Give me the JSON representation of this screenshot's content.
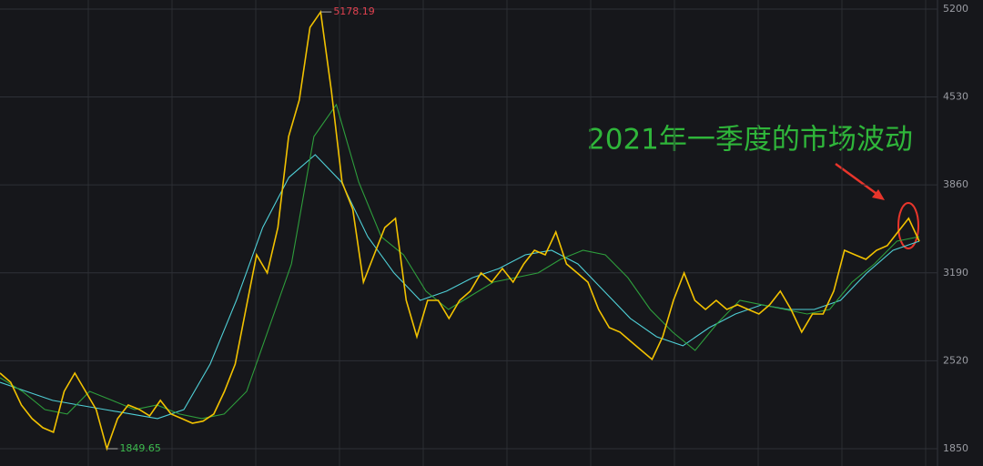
{
  "chart_data": {
    "type": "line",
    "annotation": "2021年一季度的市场波动",
    "high": 5178.19,
    "low": 1849.65,
    "ylim": [
      1718,
      5269
    ],
    "yticks": [
      1850,
      2520,
      3190,
      3860,
      4530,
      5200
    ],
    "grid": true,
    "series": [
      {
        "color": "#f2c200",
        "values": [
          2426,
          2356,
          2183,
          2079,
          2010,
          1975,
          2287,
          2426,
          2287,
          2148,
          1849.65,
          2079,
          2183,
          2150,
          2100,
          2218,
          2114,
          2079,
          2044,
          2060,
          2114,
          2287,
          2495,
          2911,
          3327,
          3189,
          3535,
          4229,
          4506,
          5061,
          5178.19,
          4576,
          3882,
          3674,
          3119,
          3327,
          3535,
          3605,
          2980,
          2703,
          2980,
          2980,
          2842,
          2980,
          3050,
          3189,
          3119,
          3223,
          3119,
          3258,
          3362,
          3327,
          3501,
          3258,
          3189,
          3119,
          2911,
          2772,
          2738,
          2668,
          2599,
          2530,
          2703,
          2980,
          3189,
          2980,
          2911,
          2980,
          2911,
          2946,
          2911,
          2876,
          2946,
          3050,
          2911,
          2738,
          2876,
          2876,
          3050,
          3362,
          3327,
          3293,
          3362,
          3397,
          3501,
          3605,
          3431
        ]
      },
      {
        "color": "#2e9e3c",
        "values": [
          2391,
          2287,
          2148,
          2114,
          2287,
          2218,
          2148,
          2183,
          2114,
          2079,
          2114,
          2287,
          2772,
          3258,
          4229,
          4472,
          3882,
          3466,
          3327,
          3050,
          2911,
          3015,
          3119,
          3154,
          3189,
          3293,
          3362,
          3327,
          3154,
          2911,
          2738,
          2599,
          2807,
          2980,
          2946,
          2911,
          2876,
          2911,
          3119,
          3258,
          3431,
          3466
        ]
      },
      {
        "color": "#4fcfd6",
        "values": [
          2356,
          2287,
          2218,
          2183,
          2148,
          2114,
          2079,
          2148,
          2495,
          2980,
          3535,
          3917,
          4090,
          3882,
          3466,
          3189,
          2980,
          3050,
          3154,
          3223,
          3327,
          3362,
          3258,
          3050,
          2842,
          2703,
          2634,
          2772,
          2876,
          2946,
          2911,
          2911,
          2980,
          3189,
          3362,
          3431
        ]
      }
    ]
  }
}
